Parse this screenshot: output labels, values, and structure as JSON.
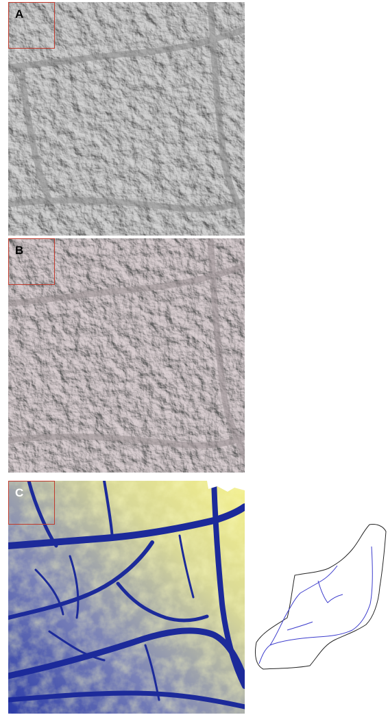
{
  "panels": [
    {
      "id": "panel-a",
      "label": "A",
      "type": "grey-hillshade"
    },
    {
      "id": "panel-b",
      "label": "B",
      "type": "tinted-hillshade"
    },
    {
      "id": "panel-c",
      "label": "C",
      "type": "elevation-color"
    }
  ],
  "colors": {
    "hillshade": "#9a9a9a",
    "tinted": "#a39a9c",
    "elevation_low": "#1c2a9a",
    "elevation_mid": "#8a8fb4",
    "elevation_high": "#f4f08a",
    "inset_box": "#c0392b",
    "stream": "#3a3acc",
    "outline": "#222222"
  },
  "inset_box": "red-square",
  "watershed": {
    "outline": "watershed-outline",
    "streams": "blue-stream-network"
  }
}
